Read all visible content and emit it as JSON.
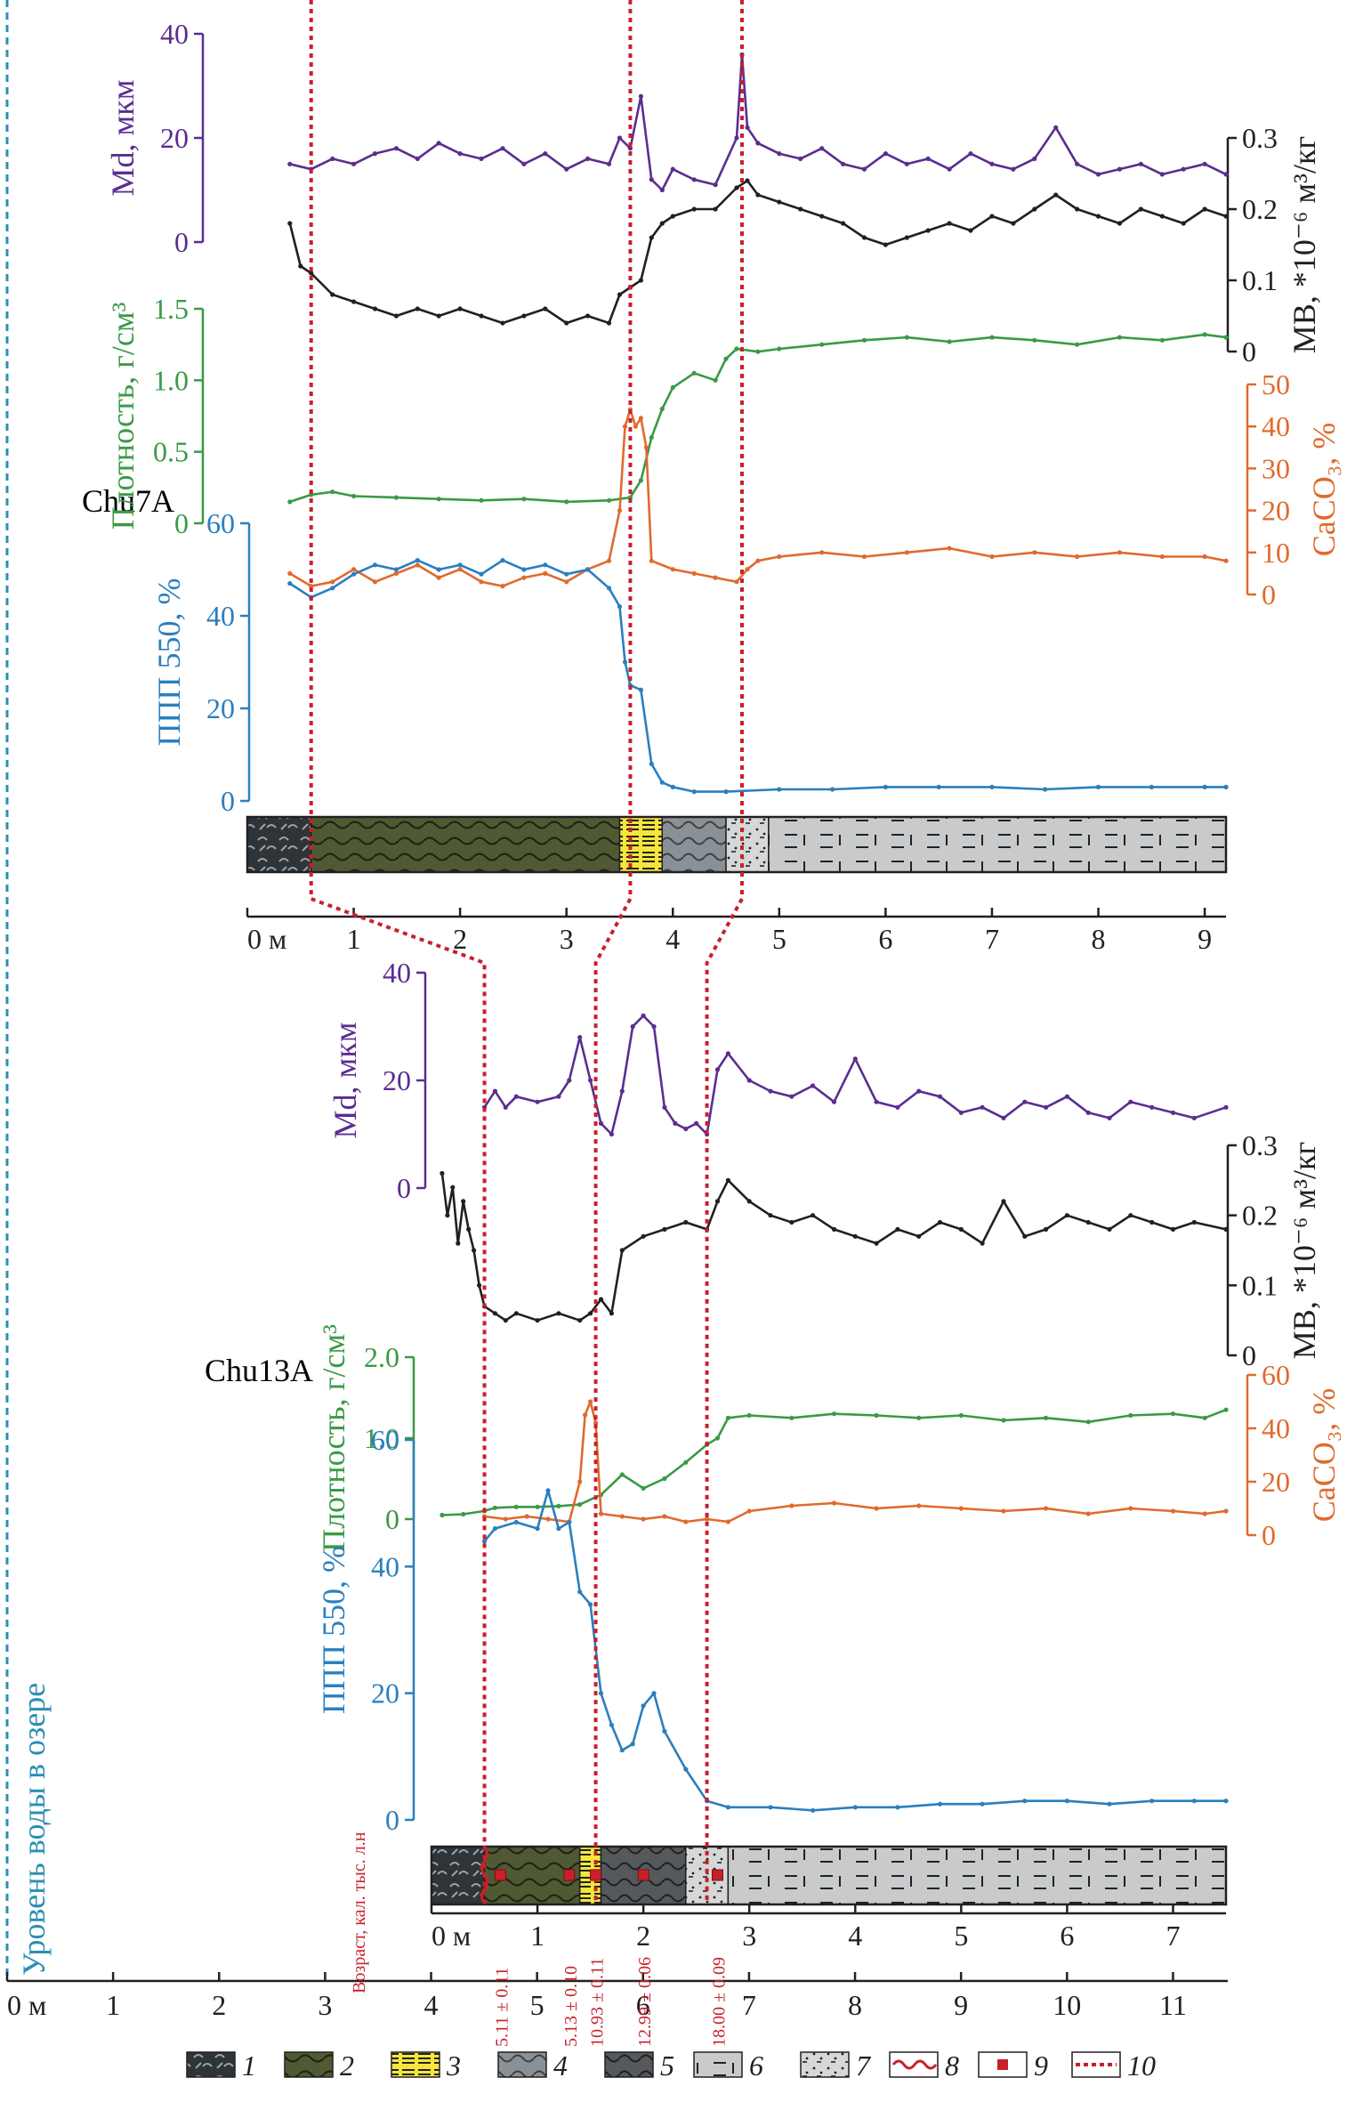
{
  "colors": {
    "md": "#5b2d90",
    "mb": "#231f20",
    "density": "#3a9a45",
    "caco3": "#e06a2c",
    "ppp": "#2a7fbf",
    "corr": "#c8202a",
    "water": "#2a8fb5"
  },
  "chart_data": [
    {
      "type": "line",
      "core": "Chu7A",
      "xaxis": {
        "ticks": [
          "0 м",
          "1",
          "2",
          "3",
          "4",
          "5",
          "6",
          "7",
          "8",
          "9"
        ],
        "range": [
          0,
          9.2
        ]
      },
      "axes": {
        "md": {
          "label": "Md, мкм",
          "ticks": [
            "40",
            "20",
            "0"
          ],
          "range": [
            0,
            40
          ]
        },
        "mb": {
          "label": "МВ, *10⁻⁶ м³/кг",
          "ticks": [
            "0.3",
            "0.2",
            "0.1",
            "0"
          ],
          "range": [
            0,
            0.3
          ]
        },
        "density": {
          "label": "Плотность, г/см³",
          "ticks": [
            "1.5",
            "1.0",
            "0.5",
            "0"
          ],
          "range": [
            0,
            1.5
          ]
        },
        "caco3": {
          "label": "CaCO₃, %",
          "ticks": [
            "50",
            "40",
            "30",
            "20",
            "10",
            "0"
          ],
          "range": [
            0,
            50
          ]
        },
        "ppp": {
          "label": "ППП 550, %",
          "ticks": [
            "60",
            "40",
            "20",
            "0"
          ],
          "range": [
            0,
            60
          ]
        }
      },
      "series": [
        {
          "key": "md",
          "x": [
            0.4,
            0.6,
            0.8,
            1.0,
            1.2,
            1.4,
            1.6,
            1.8,
            2.0,
            2.2,
            2.4,
            2.6,
            2.8,
            3.0,
            3.2,
            3.4,
            3.5,
            3.6,
            3.7,
            3.8,
            3.9,
            4.0,
            4.2,
            4.4,
            4.6,
            4.65,
            4.7,
            4.8,
            5.0,
            5.2,
            5.4,
            5.6,
            5.8,
            6.0,
            6.2,
            6.4,
            6.6,
            6.8,
            7.0,
            7.2,
            7.4,
            7.6,
            7.8,
            8.0,
            8.2,
            8.4,
            8.6,
            8.8,
            9.0,
            9.2
          ],
          "y": [
            15,
            14,
            16,
            15,
            17,
            18,
            16,
            19,
            17,
            16,
            18,
            15,
            17,
            14,
            16,
            15,
            20,
            18,
            28,
            12,
            10,
            14,
            12,
            11,
            20,
            36,
            22,
            19,
            17,
            16,
            18,
            15,
            14,
            17,
            15,
            16,
            14,
            17,
            15,
            14,
            16,
            22,
            15,
            13,
            14,
            15,
            13,
            14,
            15,
            13
          ]
        },
        {
          "key": "mb",
          "x": [
            0.4,
            0.5,
            0.6,
            0.8,
            1.0,
            1.2,
            1.4,
            1.6,
            1.8,
            2.0,
            2.2,
            2.4,
            2.6,
            2.8,
            3.0,
            3.2,
            3.4,
            3.5,
            3.6,
            3.7,
            3.8,
            3.9,
            4.0,
            4.2,
            4.4,
            4.6,
            4.7,
            4.8,
            5.0,
            5.2,
            5.4,
            5.6,
            5.8,
            6.0,
            6.2,
            6.4,
            6.6,
            6.8,
            7.0,
            7.2,
            7.4,
            7.6,
            7.8,
            8.0,
            8.2,
            8.4,
            8.6,
            8.8,
            9.0,
            9.2
          ],
          "y": [
            0.18,
            0.12,
            0.11,
            0.08,
            0.07,
            0.06,
            0.05,
            0.06,
            0.05,
            0.06,
            0.05,
            0.04,
            0.05,
            0.06,
            0.04,
            0.05,
            0.04,
            0.08,
            0.09,
            0.1,
            0.16,
            0.18,
            0.19,
            0.2,
            0.2,
            0.23,
            0.24,
            0.22,
            0.21,
            0.2,
            0.19,
            0.18,
            0.16,
            0.15,
            0.16,
            0.17,
            0.18,
            0.17,
            0.19,
            0.18,
            0.2,
            0.22,
            0.2,
            0.19,
            0.18,
            0.2,
            0.19,
            0.18,
            0.2,
            0.19
          ]
        },
        {
          "key": "density",
          "x": [
            0.4,
            0.6,
            0.8,
            1.0,
            1.4,
            1.8,
            2.2,
            2.6,
            3.0,
            3.4,
            3.6,
            3.7,
            3.8,
            3.9,
            4.0,
            4.2,
            4.4,
            4.5,
            4.6,
            4.8,
            5.0,
            5.4,
            5.8,
            6.2,
            6.6,
            7.0,
            7.4,
            7.8,
            8.2,
            8.6,
            9.0,
            9.2
          ],
          "y": [
            0.15,
            0.2,
            0.22,
            0.19,
            0.18,
            0.17,
            0.16,
            0.17,
            0.15,
            0.16,
            0.18,
            0.3,
            0.6,
            0.8,
            0.95,
            1.05,
            1.0,
            1.15,
            1.22,
            1.2,
            1.22,
            1.25,
            1.28,
            1.3,
            1.27,
            1.3,
            1.28,
            1.25,
            1.3,
            1.28,
            1.32,
            1.3
          ]
        },
        {
          "key": "caco3",
          "x": [
            0.4,
            0.6,
            0.8,
            1.0,
            1.2,
            1.4,
            1.6,
            1.8,
            2.0,
            2.2,
            2.4,
            2.6,
            2.8,
            3.0,
            3.2,
            3.4,
            3.5,
            3.55,
            3.6,
            3.65,
            3.7,
            3.75,
            3.8,
            4.0,
            4.2,
            4.4,
            4.6,
            4.7,
            4.8,
            5.0,
            5.4,
            5.8,
            6.2,
            6.6,
            7.0,
            7.4,
            7.8,
            8.2,
            8.6,
            9.0,
            9.2
          ],
          "y": [
            5,
            2,
            3,
            6,
            3,
            5,
            7,
            4,
            6,
            3,
            2,
            4,
            5,
            3,
            6,
            8,
            20,
            40,
            44,
            40,
            42,
            35,
            8,
            6,
            5,
            4,
            3,
            6,
            8,
            9,
            10,
            9,
            10,
            11,
            9,
            10,
            9,
            10,
            9,
            9,
            8
          ]
        },
        {
          "key": "ppp",
          "x": [
            0.4,
            0.6,
            0.8,
            1.0,
            1.2,
            1.4,
            1.6,
            1.8,
            2.0,
            2.2,
            2.4,
            2.6,
            2.8,
            3.0,
            3.2,
            3.4,
            3.5,
            3.55,
            3.6,
            3.7,
            3.8,
            3.9,
            4.0,
            4.2,
            4.5,
            5.0,
            5.5,
            6.0,
            6.5,
            7.0,
            7.5,
            8.0,
            8.5,
            9.0,
            9.2
          ],
          "y": [
            47,
            44,
            46,
            49,
            51,
            50,
            52,
            50,
            51,
            49,
            52,
            50,
            51,
            49,
            50,
            46,
            42,
            30,
            25,
            24,
            8,
            4,
            3,
            2,
            2,
            2.5,
            2.5,
            3,
            3,
            3,
            2.5,
            3,
            3,
            3,
            3
          ]
        }
      ],
      "lithology": [
        {
          "from": 0.0,
          "to": 0.6,
          "type": "1"
        },
        {
          "from": 0.6,
          "to": 3.5,
          "type": "2"
        },
        {
          "from": 3.5,
          "to": 3.9,
          "type": "3"
        },
        {
          "from": 3.9,
          "to": 4.5,
          "type": "4"
        },
        {
          "from": 4.5,
          "to": 4.9,
          "type": "7"
        },
        {
          "from": 4.9,
          "to": 9.2,
          "type": "6"
        }
      ],
      "corr_depths": [
        0.6,
        3.6,
        4.65
      ]
    },
    {
      "type": "line",
      "core": "Chu13A",
      "xaxis": {
        "ticks": [
          "0 м",
          "1",
          "2",
          "3",
          "4",
          "5",
          "6",
          "7"
        ],
        "range": [
          0,
          7.5
        ]
      },
      "axes": {
        "md": {
          "label": "Md, мкм",
          "ticks": [
            "40",
            "20",
            "0"
          ],
          "range": [
            0,
            40
          ]
        },
        "mb": {
          "label": "МВ, *10⁻⁶ м³/кг",
          "ticks": [
            "0.3",
            "0.2",
            "0.1",
            "0"
          ],
          "range": [
            0,
            0.3
          ]
        },
        "density": {
          "label": "Плотность, г/см³",
          "ticks": [
            "2.0",
            "1.0",
            "0"
          ],
          "range": [
            0,
            2.0
          ]
        },
        "caco3": {
          "label": "CaCO₃, %",
          "ticks": [
            "60",
            "40",
            "20",
            "0"
          ],
          "range": [
            0,
            60
          ]
        },
        "ppp": {
          "label": "ППП 550, %",
          "ticks": [
            "60",
            "40",
            "20",
            "0"
          ],
          "range": [
            0,
            60
          ]
        }
      },
      "series": [
        {
          "key": "md",
          "x": [
            0.5,
            0.6,
            0.7,
            0.8,
            1.0,
            1.2,
            1.3,
            1.4,
            1.5,
            1.6,
            1.7,
            1.8,
            1.9,
            2.0,
            2.1,
            2.2,
            2.3,
            2.4,
            2.5,
            2.6,
            2.7,
            2.8,
            3.0,
            3.2,
            3.4,
            3.6,
            3.8,
            4.0,
            4.2,
            4.4,
            4.6,
            4.8,
            5.0,
            5.2,
            5.4,
            5.6,
            5.8,
            6.0,
            6.2,
            6.4,
            6.6,
            6.8,
            7.0,
            7.2,
            7.5
          ],
          "y": [
            15,
            18,
            15,
            17,
            16,
            17,
            20,
            28,
            20,
            12,
            10,
            18,
            30,
            32,
            30,
            15,
            12,
            11,
            12,
            10,
            22,
            25,
            20,
            18,
            17,
            19,
            16,
            24,
            16,
            15,
            18,
            17,
            14,
            15,
            13,
            16,
            15,
            17,
            14,
            13,
            16,
            15,
            14,
            13,
            15
          ]
        },
        {
          "key": "mb",
          "x": [
            0.1,
            0.15,
            0.2,
            0.25,
            0.3,
            0.35,
            0.4,
            0.45,
            0.5,
            0.6,
            0.7,
            0.8,
            1.0,
            1.2,
            1.4,
            1.5,
            1.6,
            1.7,
            1.8,
            2.0,
            2.2,
            2.4,
            2.6,
            2.7,
            2.8,
            3.0,
            3.2,
            3.4,
            3.6,
            3.8,
            4.0,
            4.2,
            4.4,
            4.6,
            4.8,
            5.0,
            5.2,
            5.4,
            5.6,
            5.8,
            6.0,
            6.2,
            6.4,
            6.6,
            6.8,
            7.0,
            7.2,
            7.5
          ],
          "y": [
            0.26,
            0.2,
            0.24,
            0.16,
            0.22,
            0.18,
            0.15,
            0.1,
            0.07,
            0.06,
            0.05,
            0.06,
            0.05,
            0.06,
            0.05,
            0.06,
            0.08,
            0.06,
            0.15,
            0.17,
            0.18,
            0.19,
            0.18,
            0.22,
            0.25,
            0.22,
            0.2,
            0.19,
            0.2,
            0.18,
            0.17,
            0.16,
            0.18,
            0.17,
            0.19,
            0.18,
            0.16,
            0.22,
            0.17,
            0.18,
            0.2,
            0.19,
            0.18,
            0.2,
            0.19,
            0.18,
            0.19,
            0.18
          ]
        },
        {
          "key": "density",
          "x": [
            0.1,
            0.3,
            0.5,
            0.6,
            0.8,
            1.0,
            1.2,
            1.4,
            1.6,
            1.8,
            2.0,
            2.2,
            2.4,
            2.6,
            2.7,
            2.8,
            3.0,
            3.4,
            3.8,
            4.2,
            4.6,
            5.0,
            5.4,
            5.8,
            6.2,
            6.6,
            7.0,
            7.3,
            7.5
          ],
          "y": [
            0.05,
            0.06,
            0.1,
            0.14,
            0.15,
            0.15,
            0.16,
            0.18,
            0.3,
            0.55,
            0.38,
            0.5,
            0.7,
            0.92,
            1.0,
            1.25,
            1.28,
            1.25,
            1.3,
            1.28,
            1.25,
            1.28,
            1.22,
            1.25,
            1.2,
            1.28,
            1.3,
            1.25,
            1.35
          ]
        },
        {
          "key": "caco3",
          "x": [
            0.5,
            0.7,
            0.9,
            1.1,
            1.3,
            1.4,
            1.45,
            1.5,
            1.55,
            1.6,
            1.8,
            2.0,
            2.2,
            2.4,
            2.6,
            2.8,
            3.0,
            3.4,
            3.8,
            4.2,
            4.6,
            5.0,
            5.4,
            5.8,
            6.2,
            6.6,
            7.0,
            7.3,
            7.5
          ],
          "y": [
            7,
            6,
            7,
            6,
            5,
            20,
            45,
            50,
            42,
            8,
            7,
            6,
            7,
            5,
            6,
            5,
            9,
            11,
            12,
            10,
            11,
            10,
            9,
            10,
            8,
            10,
            9,
            8,
            9
          ]
        },
        {
          "key": "ppp",
          "x": [
            0.5,
            0.6,
            0.8,
            1.0,
            1.1,
            1.2,
            1.3,
            1.4,
            1.5,
            1.6,
            1.7,
            1.8,
            1.9,
            2.0,
            2.1,
            2.2,
            2.4,
            2.6,
            2.8,
            3.2,
            3.6,
            4.0,
            4.4,
            4.8,
            5.2,
            5.6,
            6.0,
            6.4,
            6.8,
            7.2,
            7.5
          ],
          "y": [
            44,
            46,
            47,
            46,
            52,
            46,
            47,
            36,
            34,
            20,
            15,
            11,
            12,
            18,
            20,
            14,
            8,
            3,
            2,
            2,
            1.5,
            2,
            2,
            2.5,
            2.5,
            3,
            3,
            2.5,
            3,
            3,
            3
          ]
        }
      ],
      "lithology": [
        {
          "from": 0.0,
          "to": 0.5,
          "type": "1"
        },
        {
          "from": 0.5,
          "to": 1.4,
          "type": "2"
        },
        {
          "from": 1.4,
          "to": 1.6,
          "type": "3"
        },
        {
          "from": 1.6,
          "to": 2.4,
          "type": "5"
        },
        {
          "from": 2.4,
          "to": 2.8,
          "type": "7"
        },
        {
          "from": 2.8,
          "to": 7.5,
          "type": "6"
        }
      ],
      "corr_depths": [
        0.5,
        1.55,
        2.6
      ],
      "ages": {
        "title": "Возраст, кал. тыс. л.н",
        "items": [
          {
            "depth": 0.65,
            "label": "5.11 ± 0.11"
          },
          {
            "depth": 1.3,
            "label": "5.13 ± 0.10"
          },
          {
            "depth": 1.55,
            "label": "10.93 ± 0.11"
          },
          {
            "depth": 2.0,
            "label": "12.99 ± 0.06"
          },
          {
            "depth": 2.7,
            "label": "18.00 ± 0.09"
          }
        ]
      }
    }
  ],
  "lake_axis": {
    "label": "Уровень воды в озере",
    "ticks": [
      "0 м",
      "1",
      "2",
      "3",
      "4",
      "5",
      "6",
      "7",
      "8",
      "9",
      "10",
      "11"
    ]
  },
  "legend": [
    {
      "type": "1",
      "label": "1"
    },
    {
      "type": "2",
      "label": "2"
    },
    {
      "type": "3",
      "label": "3"
    },
    {
      "type": "4",
      "label": "4"
    },
    {
      "type": "5",
      "label": "5"
    },
    {
      "type": "6",
      "label": "6"
    },
    {
      "type": "7",
      "label": "7"
    },
    {
      "type": "8",
      "label": "8"
    },
    {
      "type": "9",
      "label": "9"
    },
    {
      "type": "10",
      "label": "10"
    }
  ]
}
